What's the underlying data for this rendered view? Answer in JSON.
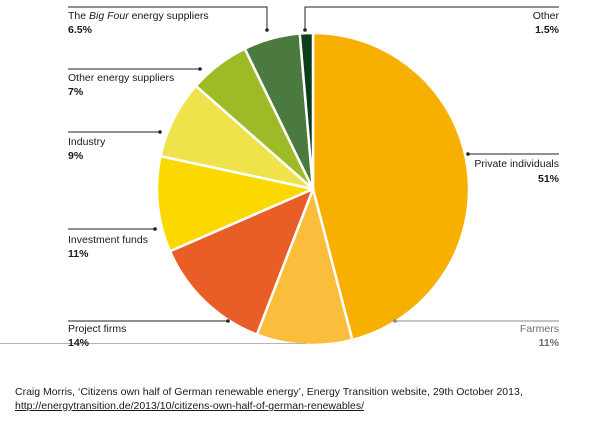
{
  "chart_data": {
    "type": "pie",
    "slices": [
      {
        "label": "Private individuals",
        "value": 51,
        "display": "51%",
        "color": "#f7af00"
      },
      {
        "label": "Farmers",
        "value": 11,
        "display": "11%",
        "color": "#fbbd3c"
      },
      {
        "label": "Project firms",
        "value": 14,
        "display": "14%",
        "color": "#e95d27"
      },
      {
        "label": "Investment funds",
        "value": 11,
        "display": "11%",
        "color": "#fbd900"
      },
      {
        "label": "Industry",
        "value": 9,
        "display": "9%",
        "color": "#efe24b"
      },
      {
        "label": "Other energy suppliers",
        "value": 7,
        "display": "7%",
        "color": "#9cbb26"
      },
      {
        "label_prefix": "The ",
        "label_italic": "Big Four",
        "label_suffix": " energy suppliers",
        "label": "The Big Four energy suppliers",
        "value": 6.5,
        "display": "6.5%",
        "color": "#4a7a3d"
      },
      {
        "label": "Other",
        "value": 1.5,
        "display": "1.5%",
        "color": "#0c3d1e"
      }
    ]
  },
  "source": {
    "text": "Craig Morris, ‘Citizens own half of German renewable energy’, Energy Transition website, 29th October 2013, ",
    "link": "http://energytransition.de/2013/10/citizens-own-half-of-german-renewables/"
  }
}
